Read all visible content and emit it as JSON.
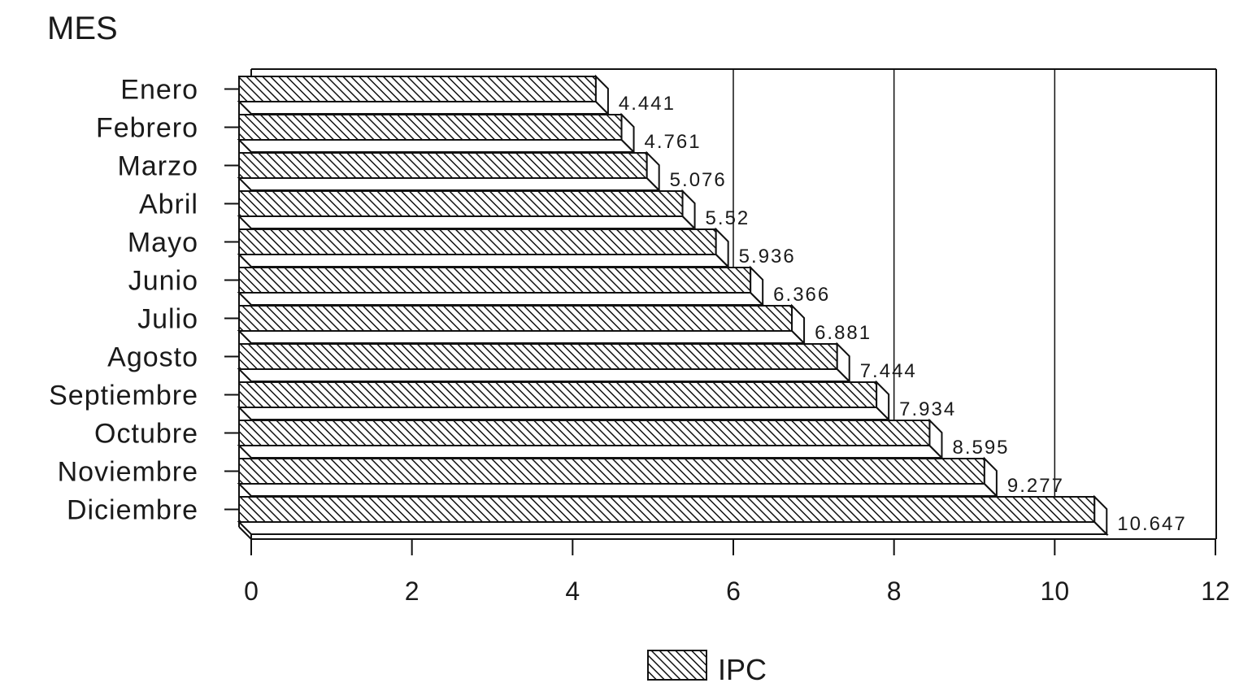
{
  "chart_data": {
    "type": "bar",
    "orientation": "horizontal",
    "title": "MES",
    "categories": [
      "Enero",
      "Febrero",
      "Marzo",
      "Abril",
      "Mayo",
      "Junio",
      "Julio",
      "Agosto",
      "Septiembre",
      "Octubre",
      "Noviembre",
      "Diciembre"
    ],
    "series": [
      {
        "name": "IPC",
        "values": [
          4.441,
          4.761,
          5.076,
          5.52,
          5.936,
          6.366,
          6.881,
          7.444,
          7.934,
          8.595,
          9.277,
          10.647
        ],
        "value_labels": [
          "4.441",
          "4.761",
          "5.076",
          "5.52",
          "5.936",
          "6.366",
          "6.881",
          "7.444",
          "7.934",
          "8.595",
          "9.277",
          "10.647"
        ]
      }
    ],
    "xlim": [
      0,
      12
    ],
    "xticks": [
      0,
      2,
      4,
      6,
      8,
      10,
      12
    ],
    "grid": "vertical",
    "grid_at": [
      6,
      8,
      10
    ],
    "legend": "bottom-center",
    "style": "3d-hatched"
  }
}
